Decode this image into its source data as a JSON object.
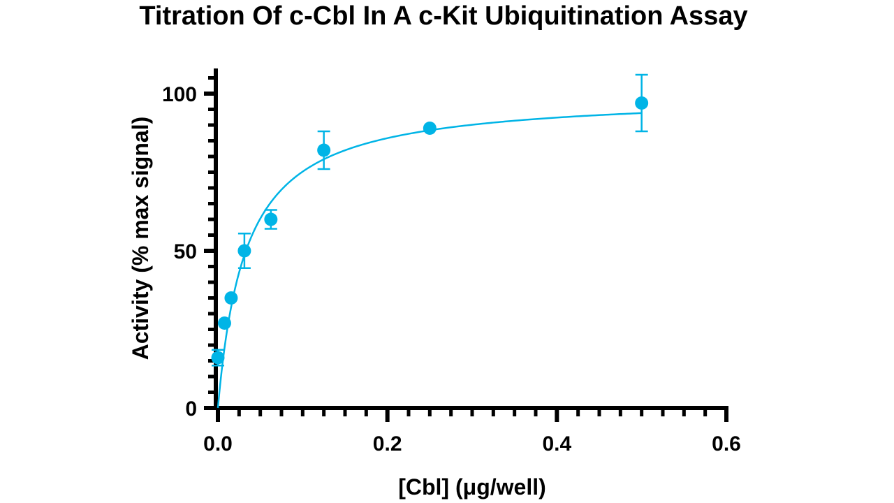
{
  "chart_data": {
    "type": "scatter",
    "title": "Titration Of c-Cbl In A c-Kit Ubiquitination Assay",
    "xlabel": "[Cbl] (μg/well)",
    "ylabel": "Activity (% max signal)",
    "xlim": [
      0,
      0.6
    ],
    "ylim": [
      0,
      100
    ],
    "x_ticks": [
      "0.0",
      "0.2",
      "0.4",
      "0.6"
    ],
    "y_ticks": [
      "0",
      "50",
      "100"
    ],
    "grid": false,
    "series": [
      {
        "color": "#00b4e6",
        "points": [
          {
            "x": 0.0,
            "y": 16,
            "err": 2.5
          },
          {
            "x": 0.0078,
            "y": 27,
            "err": 0
          },
          {
            "x": 0.0156,
            "y": 35,
            "err": 0
          },
          {
            "x": 0.03125,
            "y": 50,
            "err": 5.5
          },
          {
            "x": 0.0625,
            "y": 60,
            "err": 3
          },
          {
            "x": 0.125,
            "y": 82,
            "err": 6
          },
          {
            "x": 0.25,
            "y": 89,
            "err": 0
          },
          {
            "x": 0.5,
            "y": 97,
            "err": 9
          }
        ]
      }
    ],
    "fit_curve": {
      "model": "hyperbola",
      "ymax": 100,
      "k": 0.033,
      "x_range": [
        0,
        0.5
      ]
    }
  }
}
